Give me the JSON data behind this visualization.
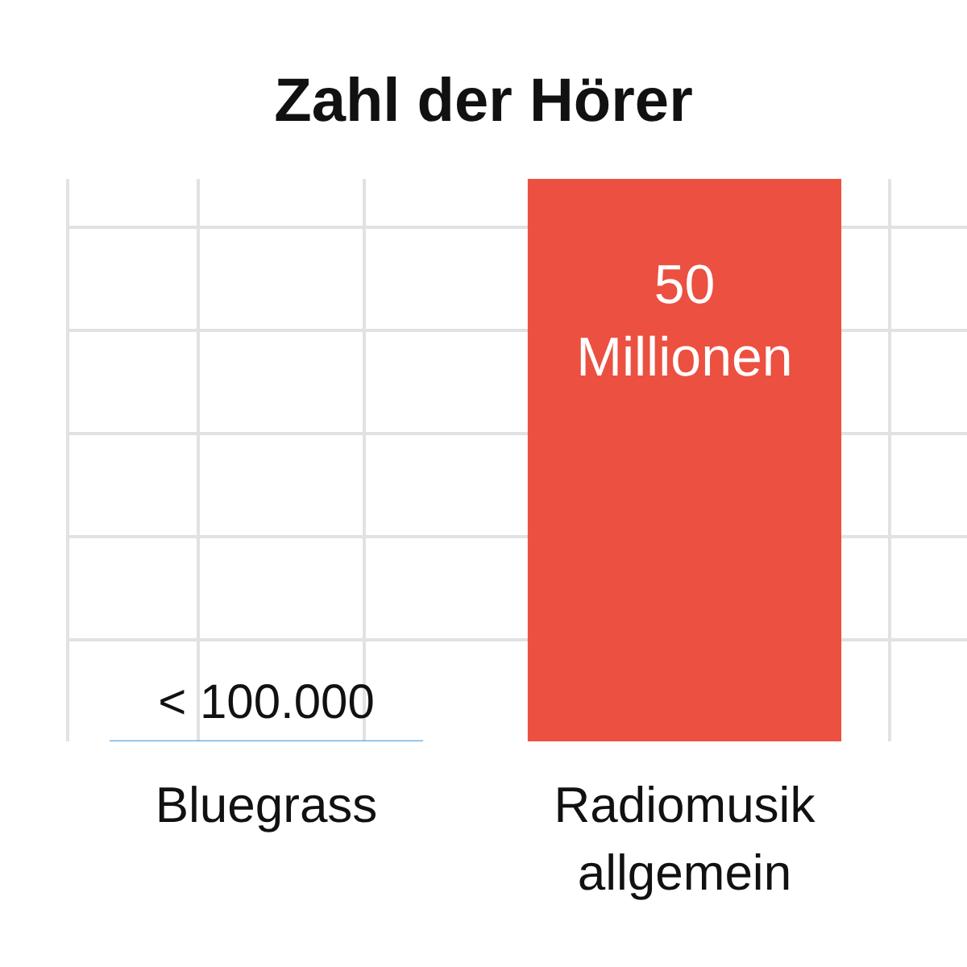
{
  "chart_data": {
    "type": "bar",
    "title": "Zahl der Hörer",
    "grid": true,
    "categories": [
      "Bluegrass",
      "Radiomusik allgemein"
    ],
    "values": [
      0.1,
      50
    ],
    "colors": [
      "#6aaee6",
      "#ec5040"
    ],
    "value_labels": [
      "< 100.000",
      "50 Millionen"
    ]
  }
}
